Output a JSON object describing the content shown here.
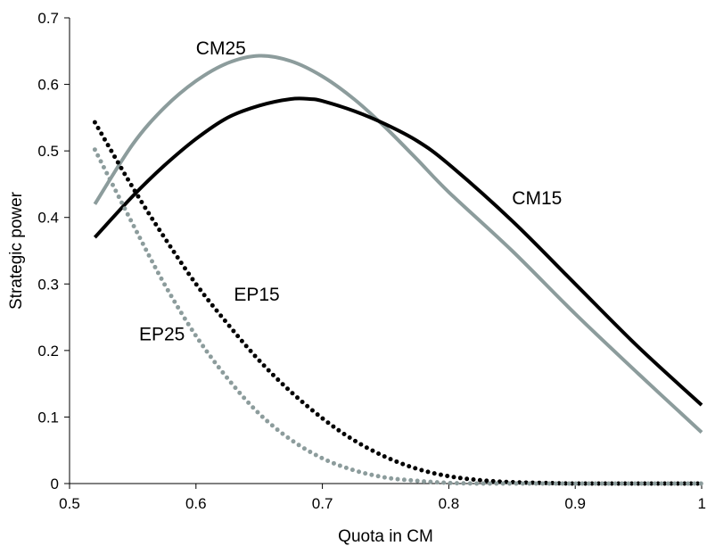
{
  "chart_data": {
    "type": "line",
    "title": "",
    "xlabel": "Quota in CM",
    "ylabel": "Strategic power",
    "xlim": [
      0.5,
      1.0
    ],
    "ylim": [
      0,
      0.7
    ],
    "xticks": [
      "0.5",
      "0.6",
      "0.7",
      "0.8",
      "0.9",
      "1"
    ],
    "yticks": [
      "0",
      "0.1",
      "0.2",
      "0.3",
      "0.4",
      "0.5",
      "0.6",
      "0.7"
    ],
    "grid": false,
    "series": [
      {
        "name": "CM25",
        "style": "solid",
        "color": "#8C9C9C",
        "x": [
          0.52,
          0.55,
          0.575,
          0.6,
          0.625,
          0.65,
          0.675,
          0.7,
          0.725,
          0.75,
          0.775,
          0.8,
          0.85,
          0.9,
          0.95,
          1.0
        ],
        "y": [
          0.42,
          0.51,
          0.565,
          0.605,
          0.632,
          0.643,
          0.635,
          0.612,
          0.578,
          0.535,
          0.487,
          0.438,
          0.35,
          0.255,
          0.165,
          0.077
        ]
      },
      {
        "name": "CM15",
        "style": "solid",
        "color": "#000000",
        "x": [
          0.52,
          0.55,
          0.575,
          0.6,
          0.625,
          0.65,
          0.675,
          0.69,
          0.7,
          0.725,
          0.75,
          0.775,
          0.8,
          0.85,
          0.9,
          0.95,
          1.0
        ],
        "y": [
          0.37,
          0.432,
          0.478,
          0.518,
          0.55,
          0.568,
          0.578,
          0.578,
          0.575,
          0.56,
          0.54,
          0.515,
          0.48,
          0.395,
          0.3,
          0.205,
          0.118
        ]
      },
      {
        "name": "EP15",
        "style": "dotted",
        "color": "#000000",
        "x": [
          0.52,
          0.55,
          0.575,
          0.6,
          0.625,
          0.65,
          0.675,
          0.7,
          0.725,
          0.75,
          0.775,
          0.8,
          0.825,
          0.85,
          0.875,
          0.9,
          0.95,
          1.0
        ],
        "y": [
          0.543,
          0.445,
          0.37,
          0.3,
          0.24,
          0.185,
          0.138,
          0.098,
          0.065,
          0.04,
          0.022,
          0.011,
          0.005,
          0.002,
          0.001,
          0.0,
          0.0,
          0.0
        ]
      },
      {
        "name": "EP25",
        "style": "dotted",
        "color": "#8C9C9C",
        "x": [
          0.52,
          0.55,
          0.575,
          0.6,
          0.625,
          0.65,
          0.675,
          0.7,
          0.725,
          0.75,
          0.775,
          0.8,
          0.825,
          0.85,
          0.9,
          0.95,
          1.0
        ],
        "y": [
          0.502,
          0.39,
          0.3,
          0.222,
          0.158,
          0.105,
          0.066,
          0.038,
          0.02,
          0.009,
          0.004,
          0.001,
          0.0,
          0.0,
          0.0,
          0.0,
          0.0
        ]
      }
    ],
    "annotations": [
      {
        "text": "CM25",
        "x": 0.6,
        "y": 0.645
      },
      {
        "text": "CM15",
        "x": 0.85,
        "y": 0.42
      },
      {
        "text": "EP15",
        "x": 0.63,
        "y": 0.275
      },
      {
        "text": "EP25",
        "x": 0.555,
        "y": 0.215
      }
    ]
  }
}
